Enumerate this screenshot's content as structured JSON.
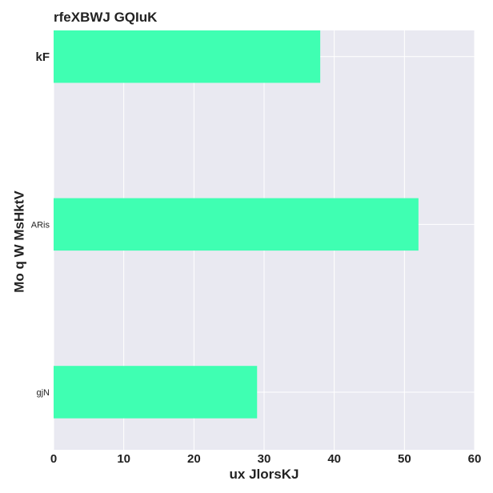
{
  "chart_data": {
    "type": "bar",
    "orientation": "horizontal",
    "title": "rfeXBWJ GQIuK",
    "xlabel": "ux JlorsKJ",
    "ylabel": "Mo  q W MsHktV",
    "categories": [
      "kF",
      "ARis",
      "gjN"
    ],
    "emphasized_categories": [
      "kF"
    ],
    "values": [
      38,
      52,
      29
    ],
    "xlim": [
      0,
      60
    ],
    "xticks": [
      0,
      10,
      20,
      30,
      40,
      50,
      60
    ],
    "grid": true,
    "legend": "none",
    "colors": {
      "bar": "#3fffb2",
      "plot_background": "#e9e9f1",
      "grid": "#ffffff",
      "text": "#222222"
    }
  }
}
